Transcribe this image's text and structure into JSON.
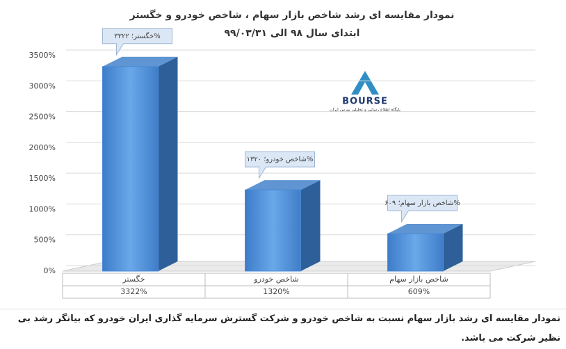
{
  "chart_data": {
    "type": "bar",
    "title": "نمودار مقایسه ای رشد شاخص بازار سهام ، شاخص خودرو و خگستر",
    "subtitle": "ابتدای سال ۹۸ الی ۹۹/۰۳/۳۱",
    "categories": [
      "خگستر",
      "شاخص خودرو",
      "شاخص بازار سهام"
    ],
    "values": [
      3322,
      1320,
      609
    ],
    "value_labels": [
      "%خگستر؛ ۳۳۲۲",
      "%شاخص خودرو؛ ۱۳۲۰",
      "%شاخص بازار سهام؛ ۶۰۹"
    ],
    "table_labels": [
      "3322%",
      "1320%",
      "609%"
    ],
    "color": "#4a8ad4",
    "ylim": [
      0,
      3500
    ],
    "yticks": [
      {
        "value": 0,
        "label": "0%"
      },
      {
        "value": 500,
        "label": "500%"
      },
      {
        "value": 1000,
        "label": "1000%"
      },
      {
        "value": 1500,
        "label": "1500%"
      },
      {
        "value": 2000,
        "label": "2000%"
      },
      {
        "value": 2500,
        "label": "2500%"
      },
      {
        "value": 3000,
        "label": "3000%"
      },
      {
        "value": 3500,
        "label": "3500%"
      }
    ],
    "grid": true
  },
  "logo": {
    "name": "BOURSE",
    "tagline": "پایگاه اطلاع رسانی و تحلیلی بورس ایران"
  },
  "caption": "نمودار مقایسه ای رشد بازار سهام نسبت به شاخص خودرو و شرکت گسترش سرمایه گذاری ایران خودرو  که بیانگر رشد بی نظیر شرکت می باشد."
}
